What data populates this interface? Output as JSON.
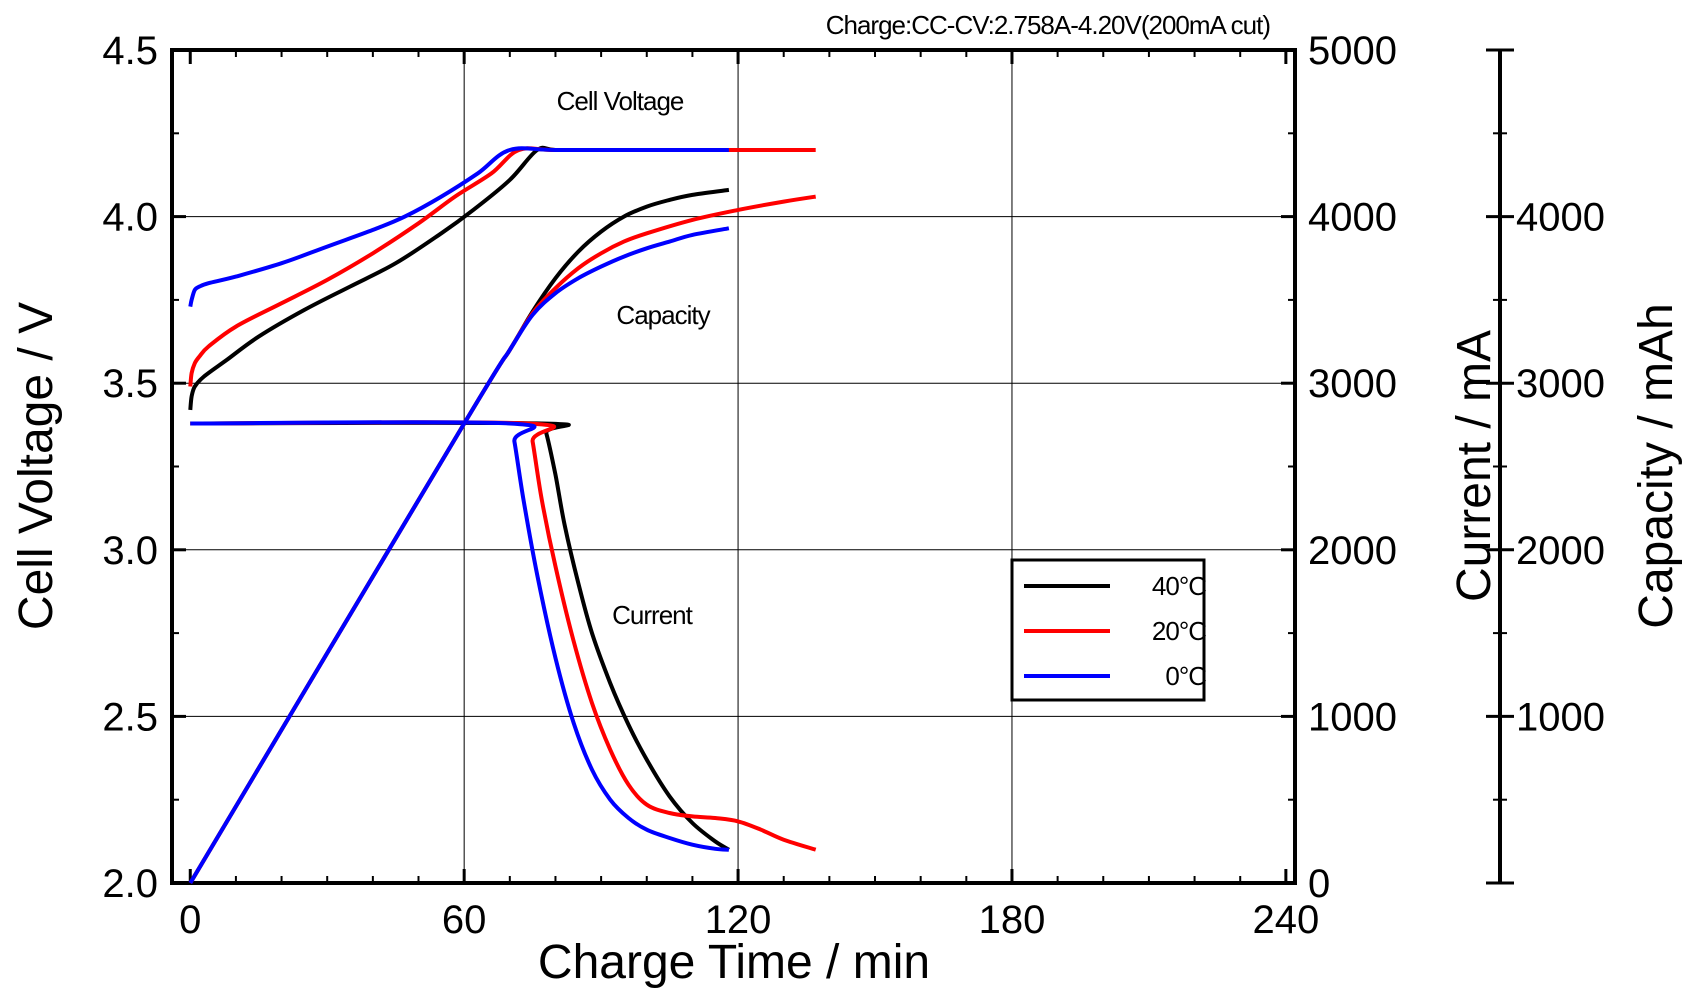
{
  "chart_data": {
    "type": "line",
    "title": "Charge:CC-CV:2.758A-4.20V(200mA  cut)",
    "xlabel": "Charge  Time  /  min",
    "xlim": [
      -4,
      242
    ],
    "xticks": [
      "0",
      "60",
      "120",
      "180",
      "240"
    ],
    "xtick_values": [
      0,
      60,
      120,
      180,
      240
    ],
    "grid": true,
    "y_axes": {
      "voltage": {
        "label": "Cell  Voltage  /  V",
        "lim": [
          2.0,
          4.5
        ],
        "ticks": [
          "2.0",
          "2.5",
          "3.0",
          "3.5",
          "4.0",
          "4.5"
        ],
        "tick_values": [
          2.0,
          2.5,
          3.0,
          3.5,
          4.0,
          4.5
        ]
      },
      "current": {
        "label": "Current  /  mA",
        "lim": [
          0,
          5000
        ],
        "ticks": [
          "0",
          "1000",
          "2000",
          "3000",
          "4000",
          "5000"
        ],
        "tick_values": [
          0,
          1000,
          2000,
          3000,
          4000,
          5000
        ]
      },
      "capacity": {
        "label": "Capacity  /  mAh",
        "lim": [
          0,
          5000
        ],
        "ticks": [
          "1000",
          "2000",
          "3000",
          "4000"
        ],
        "tick_values": [
          1000,
          2000,
          3000,
          4000
        ]
      }
    },
    "annotations": {
      "voltage": "Cell  Voltage",
      "capacity": "Capacity",
      "current": "Current"
    },
    "legend": {
      "position": "center-right",
      "entries": [
        {
          "label": "40°C",
          "color": "#000000"
        },
        {
          "label": "20°C",
          "color": "#ff0000"
        },
        {
          "label": "0°C",
          "color": "#0000ff"
        }
      ]
    },
    "series": [
      {
        "name": "40°C",
        "quantity": "voltage",
        "color": "#000000",
        "x": [
          0,
          0.3,
          1,
          3,
          8,
          15,
          25,
          35,
          45,
          55,
          62,
          70,
          76,
          80,
          90,
          100,
          110,
          118
        ],
        "y": [
          3.42,
          3.46,
          3.49,
          3.52,
          3.57,
          3.64,
          3.72,
          3.79,
          3.86,
          3.95,
          4.02,
          4.11,
          4.2,
          4.2,
          4.2,
          4.2,
          4.2,
          4.2
        ]
      },
      {
        "name": "20°C",
        "quantity": "voltage",
        "color": "#ff0000",
        "x": [
          0,
          0.3,
          1,
          2,
          4,
          10,
          20,
          30,
          40,
          50,
          58,
          66,
          72,
          80,
          100,
          120,
          137
        ],
        "y": [
          3.49,
          3.53,
          3.56,
          3.58,
          3.61,
          3.67,
          3.74,
          3.81,
          3.89,
          3.98,
          4.06,
          4.13,
          4.2,
          4.2,
          4.2,
          4.2,
          4.2
        ]
      },
      {
        "name": "0°C",
        "quantity": "voltage",
        "color": "#0000ff",
        "x": [
          0,
          0.3,
          1,
          2,
          4,
          10,
          20,
          30,
          40,
          47,
          55,
          63,
          70,
          80,
          100,
          118
        ],
        "y": [
          3.73,
          3.75,
          3.78,
          3.79,
          3.8,
          3.82,
          3.86,
          3.91,
          3.96,
          4.0,
          4.06,
          4.13,
          4.2,
          4.2,
          4.2,
          4.2
        ]
      },
      {
        "name": "40°C",
        "quantity": "current",
        "color": "#000000",
        "x": [
          0,
          77,
          78,
          80,
          82,
          85,
          88,
          92,
          96,
          100,
          105,
          110,
          115,
          118
        ],
        "y": [
          2758,
          2758,
          2700,
          2450,
          2150,
          1800,
          1500,
          1200,
          950,
          740,
          520,
          360,
          250,
          200
        ]
      },
      {
        "name": "20°C",
        "quantity": "current",
        "color": "#ff0000",
        "x": [
          0,
          74,
          75,
          77,
          80,
          84,
          88,
          92,
          96,
          100,
          105,
          110,
          115,
          120,
          125,
          130,
          137
        ],
        "y": [
          2758,
          2758,
          2650,
          2300,
          1900,
          1450,
          1080,
          800,
          590,
          470,
          420,
          400,
          390,
          370,
          320,
          260,
          200
        ]
      },
      {
        "name": "0°C",
        "quantity": "current",
        "color": "#0000ff",
        "x": [
          0,
          70,
          71,
          73,
          76,
          80,
          84,
          88,
          92,
          96,
          100,
          105,
          110,
          115,
          118
        ],
        "y": [
          2758,
          2758,
          2650,
          2300,
          1850,
          1350,
          960,
          680,
          500,
          390,
          320,
          270,
          230,
          205,
          200
        ]
      },
      {
        "name": "40°C",
        "quantity": "capacity",
        "color": "#000000",
        "x": [
          0,
          60,
          70,
          75,
          80,
          85,
          90,
          95,
          100,
          105,
          110,
          118
        ],
        "y": [
          0,
          2758,
          3200,
          3430,
          3630,
          3790,
          3910,
          4000,
          4060,
          4100,
          4130,
          4160
        ]
      },
      {
        "name": "20°C",
        "quantity": "capacity",
        "color": "#ff0000",
        "x": [
          0,
          60,
          70,
          75,
          80,
          85,
          90,
          95,
          100,
          110,
          120,
          130,
          137
        ],
        "y": [
          0,
          2758,
          3200,
          3420,
          3570,
          3690,
          3780,
          3850,
          3900,
          3980,
          4040,
          4090,
          4120
        ]
      },
      {
        "name": "0°C",
        "quantity": "capacity",
        "color": "#0000ff",
        "x": [
          0,
          60,
          70,
          75,
          80,
          85,
          90,
          95,
          100,
          105,
          110,
          118
        ],
        "y": [
          0,
          2758,
          3200,
          3410,
          3540,
          3630,
          3700,
          3760,
          3810,
          3850,
          3890,
          3930
        ]
      }
    ]
  }
}
